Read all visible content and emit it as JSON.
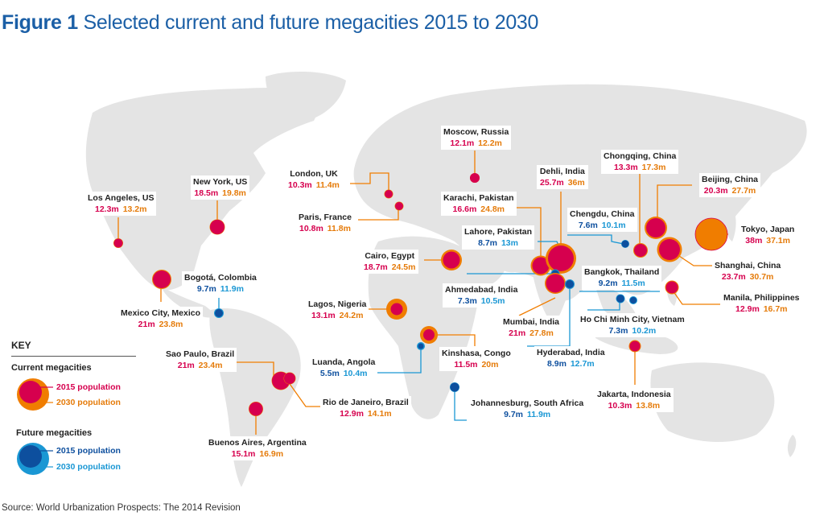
{
  "title": {
    "prefix": "Figure 1",
    "text": "Selected current and future megacities 2015 to 2030"
  },
  "source": "Source: World Urbanization Prospects: The 2014 Revision",
  "colors": {
    "current_2015": "#d6004e",
    "current_2030": "#f07d00",
    "future_2015": "#0d4f9e",
    "future_2030": "#1a97d4",
    "land": "#e4e4e4"
  },
  "key": {
    "title": "KEY",
    "current_title": "Current megacities",
    "current_2015": "2015 population",
    "current_2030": "2030 population",
    "future_title": "Future megacities",
    "future_2015": "2015 population",
    "future_2030": "2030 population"
  },
  "cities": [
    {
      "id": "los-angeles",
      "name": "Los Angeles, US",
      "pop2015": "12.3m",
      "pop2030": "13.2m",
      "kind": "current"
    },
    {
      "id": "new-york",
      "name": "New York, US",
      "pop2015": "18.5m",
      "pop2030": "19.8m",
      "kind": "current"
    },
    {
      "id": "mexico-city",
      "name": "Mexico City, Mexico",
      "pop2015": "21m",
      "pop2030": "23.8m",
      "kind": "current"
    },
    {
      "id": "bogota",
      "name": "Bogotá, Colombia",
      "pop2015": "9.7m",
      "pop2030": "11.9m",
      "kind": "future"
    },
    {
      "id": "sao-paulo",
      "name": "Sao Paulo, Brazil",
      "pop2015": "21m",
      "pop2030": "23.4m",
      "kind": "current"
    },
    {
      "id": "rio",
      "name": "Rio de Janeiro, Brazil",
      "pop2015": "12.9m",
      "pop2030": "14.1m",
      "kind": "current"
    },
    {
      "id": "buenos-aires",
      "name": "Buenos Aires, Argentina",
      "pop2015": "15.1m",
      "pop2030": "16.9m",
      "kind": "current"
    },
    {
      "id": "london",
      "name": "London, UK",
      "pop2015": "10.3m",
      "pop2030": "11.4m",
      "kind": "current"
    },
    {
      "id": "paris",
      "name": "Paris, France",
      "pop2015": "10.8m",
      "pop2030": "11.8m",
      "kind": "current"
    },
    {
      "id": "moscow",
      "name": "Moscow, Russia",
      "pop2015": "12.1m",
      "pop2030": "12.2m",
      "kind": "current"
    },
    {
      "id": "cairo",
      "name": "Cairo, Egypt",
      "pop2015": "18.7m",
      "pop2030": "24.5m",
      "kind": "current"
    },
    {
      "id": "lagos",
      "name": "Lagos, Nigeria",
      "pop2015": "13.1m",
      "pop2030": "24.2m",
      "kind": "current"
    },
    {
      "id": "kinshasa",
      "name": "Kinshasa, Congo",
      "pop2015": "11.5m",
      "pop2030": "20m",
      "kind": "current"
    },
    {
      "id": "luanda",
      "name": "Luanda, Angola",
      "pop2015": "5.5m",
      "pop2030": "10.4m",
      "kind": "future"
    },
    {
      "id": "johannesburg",
      "name": "Johannesburg, South Africa",
      "pop2015": "9.7m",
      "pop2030": "11.9m",
      "kind": "future"
    },
    {
      "id": "karachi",
      "name": "Karachi, Pakistan",
      "pop2015": "16.6m",
      "pop2030": "24.8m",
      "kind": "current"
    },
    {
      "id": "lahore",
      "name": "Lahore, Pakistan",
      "pop2015": "8.7m",
      "pop2030": "13m",
      "kind": "future"
    },
    {
      "id": "delhi",
      "name": "Dehli, India",
      "pop2015": "25.7m",
      "pop2030": "36m",
      "kind": "current"
    },
    {
      "id": "ahmedabad",
      "name": "Ahmedabad, India",
      "pop2015": "7.3m",
      "pop2030": "10.5m",
      "kind": "future"
    },
    {
      "id": "mumbai",
      "name": "Mumbai, India",
      "pop2015": "21m",
      "pop2030": "27.8m",
      "kind": "current"
    },
    {
      "id": "hyderabad",
      "name": "Hyderabad, India",
      "pop2015": "8.9m",
      "pop2030": "12.7m",
      "kind": "future"
    },
    {
      "id": "chongqing",
      "name": "Chongqing, China",
      "pop2015": "13.3m",
      "pop2030": "17.3m",
      "kind": "current"
    },
    {
      "id": "chengdu",
      "name": "Chengdu, China",
      "pop2015": "7.6m",
      "pop2030": "10.1m",
      "kind": "future"
    },
    {
      "id": "beijing",
      "name": "Beijing, China",
      "pop2015": "20.3m",
      "pop2030": "27.7m",
      "kind": "current"
    },
    {
      "id": "tokyo",
      "name": "Tokyo, Japan",
      "pop2015": "38m",
      "pop2030": "37.1m",
      "kind": "current"
    },
    {
      "id": "shanghai",
      "name": "Shanghai, China",
      "pop2015": "23.7m",
      "pop2030": "30.7m",
      "kind": "current"
    },
    {
      "id": "bangkok",
      "name": "Bangkok, Thailand",
      "pop2015": "9.2m",
      "pop2030": "11.5m",
      "kind": "future"
    },
    {
      "id": "manila",
      "name": "Manila, Philippines",
      "pop2015": "12.9m",
      "pop2030": "16.7m",
      "kind": "current"
    },
    {
      "id": "hcmc",
      "name": "Ho Chi Minh City, Vietnam",
      "pop2015": "7.3m",
      "pop2030": "10.2m",
      "kind": "future"
    },
    {
      "id": "jakarta",
      "name": "Jakarta, Indonesia",
      "pop2015": "10.3m",
      "pop2030": "13.8m",
      "kind": "current"
    }
  ]
}
